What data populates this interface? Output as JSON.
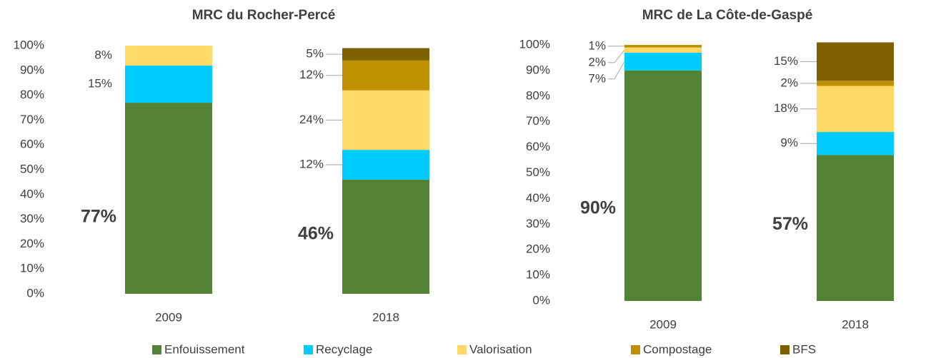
{
  "chart_data": [
    {
      "type": "stacked_bar",
      "title": "MRC du Rocher-Percé",
      "categories": [
        "2009",
        "2018"
      ],
      "ylim": [
        0,
        100
      ],
      "yticks": [
        {
          "value": 0,
          "label": "0%"
        },
        {
          "value": 10,
          "label": "10%"
        },
        {
          "value": 20,
          "label": "20%"
        },
        {
          "value": 30,
          "label": "30%"
        },
        {
          "value": 40,
          "label": "40%"
        },
        {
          "value": 50,
          "label": "50%"
        },
        {
          "value": 60,
          "label": "60%"
        },
        {
          "value": 70,
          "label": "70%"
        },
        {
          "value": 80,
          "label": "80%"
        },
        {
          "value": 90,
          "label": "90%"
        },
        {
          "value": 100,
          "label": "100%"
        }
      ],
      "legend": "bottom",
      "series": [
        {
          "name": "Enfouissement",
          "color": "#548235",
          "values": [
            77,
            46
          ],
          "value_labels": [
            "77%",
            "46%"
          ]
        },
        {
          "name": "Recyclage",
          "color": "#00ccff",
          "values": [
            15,
            12
          ],
          "value_labels": [
            "15%",
            "12%"
          ]
        },
        {
          "name": "Valorisation",
          "color": "#ffd966",
          "values": [
            8,
            24
          ],
          "value_labels": [
            "8%",
            "24%"
          ]
        },
        {
          "name": "Compostage",
          "color": "#bf9000",
          "values": [
            null,
            12
          ],
          "value_labels": [
            null,
            "12%"
          ]
        },
        {
          "name": "BFS",
          "color": "#7f6000",
          "values": [
            null,
            5
          ],
          "value_labels": [
            null,
            "5%"
          ]
        }
      ]
    },
    {
      "type": "stacked_bar",
      "title": "MRC de La Côte-de-Gaspé",
      "categories": [
        "2009",
        "2018"
      ],
      "ylim": [
        0,
        100
      ],
      "yticks": [
        {
          "value": 0,
          "label": "0%"
        },
        {
          "value": 10,
          "label": "10%"
        },
        {
          "value": 20,
          "label": "20%"
        },
        {
          "value": 30,
          "label": "30%"
        },
        {
          "value": 40,
          "label": "40%"
        },
        {
          "value": 50,
          "label": "50%"
        },
        {
          "value": 60,
          "label": "60%"
        },
        {
          "value": 70,
          "label": "70%"
        },
        {
          "value": 80,
          "label": "80%"
        },
        {
          "value": 90,
          "label": "90%"
        },
        {
          "value": 100,
          "label": "100%"
        }
      ],
      "series": [
        {
          "name": "Enfouissement",
          "color": "#548235",
          "values": [
            90,
            57
          ],
          "value_labels": [
            "90%",
            "57%"
          ]
        },
        {
          "name": "Recyclage",
          "color": "#00ccff",
          "values": [
            7,
            9
          ],
          "value_labels": [
            "7%",
            "9%"
          ]
        },
        {
          "name": "Valorisation",
          "color": "#ffd966",
          "values": [
            2,
            18
          ],
          "value_labels": [
            "2%",
            "18%"
          ]
        },
        {
          "name": "Compostage",
          "color": "#bf9000",
          "values": [
            1,
            2
          ],
          "value_labels": [
            "1%",
            "2%"
          ]
        },
        {
          "name": "BFS",
          "color": "#7f6000",
          "values": [
            null,
            15
          ],
          "value_labels": [
            null,
            "15%"
          ]
        }
      ]
    }
  ]
}
